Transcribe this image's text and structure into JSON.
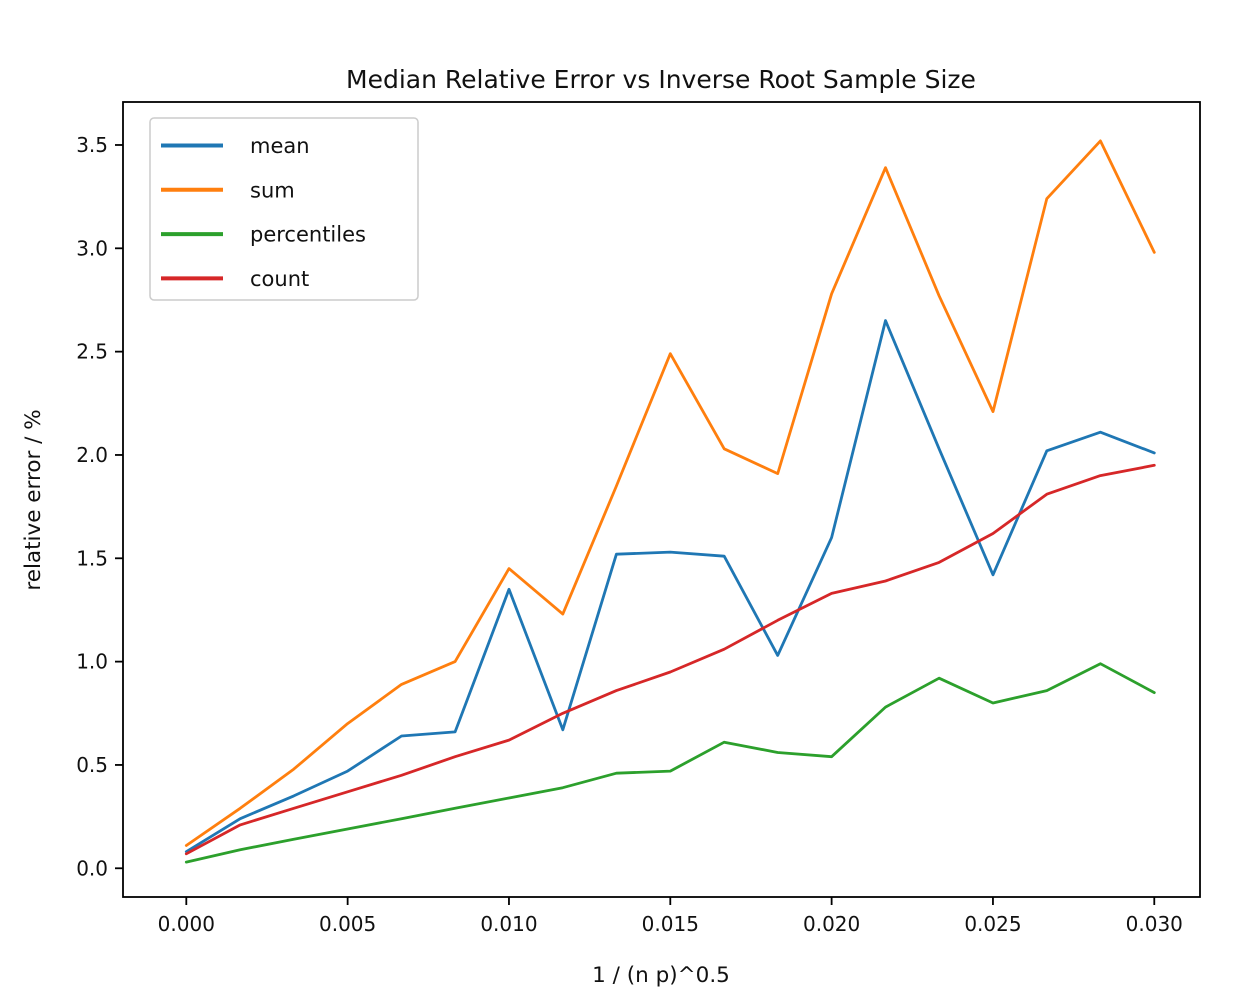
{
  "figure": {
    "background": "#ffffff",
    "frame_color": "#000000",
    "text_color": "#111111"
  },
  "chart_data": {
    "type": "line",
    "title": "Median Relative Error vs Inverse Root Sample Size",
    "xlabel": "1 / (n p)^0.5",
    "ylabel": "relative error / %",
    "grid": false,
    "legend_position": "upper left",
    "xlim": [
      -0.001962,
      0.031417
    ],
    "ylim": [
      -0.139,
      3.708
    ],
    "x_ticks": [
      0.0,
      0.005,
      0.01,
      0.015,
      0.02,
      0.025,
      0.03
    ],
    "x_tick_labels": [
      "0.000",
      "0.005",
      "0.010",
      "0.015",
      "0.020",
      "0.025",
      "0.030"
    ],
    "y_ticks": [
      0.0,
      0.5,
      1.0,
      1.5,
      2.0,
      2.5,
      3.0,
      3.5
    ],
    "y_tick_labels": [
      "0.0",
      "0.5",
      "1.0",
      "1.5",
      "2.0",
      "2.5",
      "3.0",
      "3.5"
    ],
    "x": [
      0.0,
      0.00167,
      0.00333,
      0.005,
      0.00667,
      0.00833,
      0.01,
      0.01167,
      0.01333,
      0.015,
      0.01667,
      0.01833,
      0.02,
      0.02167,
      0.02333,
      0.025,
      0.02667,
      0.02833,
      0.03
    ],
    "series": [
      {
        "name": "mean",
        "color": "#1f77b4",
        "values": [
          0.08,
          0.24,
          0.35,
          0.47,
          0.64,
          0.66,
          1.35,
          0.67,
          1.52,
          1.53,
          1.51,
          1.03,
          1.6,
          2.65,
          2.03,
          1.42,
          2.02,
          2.11,
          2.01
        ]
      },
      {
        "name": "sum",
        "color": "#ff7f0e",
        "values": [
          0.11,
          0.29,
          0.48,
          0.7,
          0.89,
          1.0,
          1.45,
          1.23,
          1.85,
          2.49,
          2.03,
          1.91,
          2.78,
          3.39,
          2.77,
          2.21,
          3.24,
          3.52,
          2.98
        ]
      },
      {
        "name": "percentiles",
        "color": "#2ca02c",
        "values": [
          0.03,
          0.09,
          0.14,
          0.19,
          0.24,
          0.29,
          0.34,
          0.39,
          0.46,
          0.47,
          0.61,
          0.56,
          0.54,
          0.78,
          0.92,
          0.8,
          0.86,
          0.99,
          0.85
        ]
      },
      {
        "name": "count",
        "color": "#d62728",
        "values": [
          0.07,
          0.21,
          0.29,
          0.37,
          0.45,
          0.54,
          0.62,
          0.75,
          0.86,
          0.95,
          1.06,
          1.2,
          1.33,
          1.39,
          1.48,
          1.62,
          1.81,
          1.9,
          1.95
        ]
      }
    ]
  }
}
